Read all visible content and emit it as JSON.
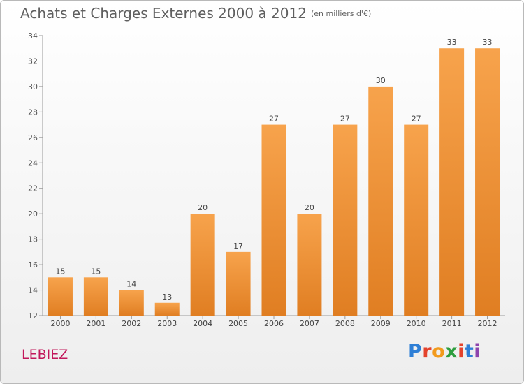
{
  "title": "Achats et Charges Externes 2000 à 2012",
  "subtitle": "(en milliers d'€)",
  "commune": "LEBIEZ",
  "logo": {
    "text": "Proxiti",
    "letters": [
      {
        "ch": "P",
        "color": "#2e7fd6"
      },
      {
        "ch": "r",
        "color": "#e4432d"
      },
      {
        "ch": "o",
        "color": "#f29b1d"
      },
      {
        "ch": "x",
        "color": "#2e9e3f"
      },
      {
        "ch": "i",
        "color": "#e4432d"
      },
      {
        "ch": "t",
        "color": "#2e7fd6"
      },
      {
        "ch": "i",
        "color": "#8e44ad"
      }
    ]
  },
  "chart_data": {
    "type": "bar",
    "title": "Achats et Charges Externes 2000 à 2012",
    "subtitle": "(en milliers d'€)",
    "xlabel": "",
    "ylabel": "",
    "categories": [
      "2000",
      "2001",
      "2002",
      "2003",
      "2004",
      "2005",
      "2006",
      "2007",
      "2008",
      "2009",
      "2010",
      "2011",
      "2012"
    ],
    "values": [
      15,
      15,
      14,
      13,
      20,
      17,
      27,
      20,
      27,
      30,
      27,
      33,
      33
    ],
    "ylim": [
      12,
      34
    ],
    "yticks": [
      12,
      14,
      16,
      18,
      20,
      22,
      24,
      26,
      28,
      30,
      32,
      34
    ],
    "grid": false,
    "legend": "none",
    "bar_color": "#e07e22",
    "bar_color_light": "#f7a34c"
  }
}
